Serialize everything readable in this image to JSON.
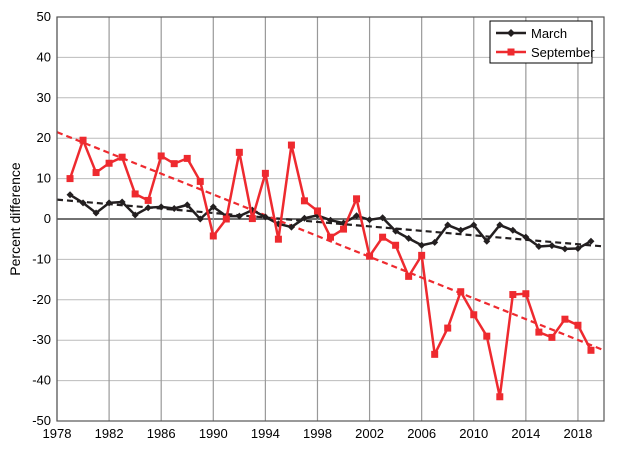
{
  "chart_data": {
    "type": "line",
    "title": "",
    "xlabel": "",
    "ylabel": "Percent difference",
    "xlim": [
      1978,
      2020
    ],
    "ylim": [
      -50,
      50
    ],
    "xticks": [
      1978,
      1982,
      1986,
      1990,
      1994,
      1998,
      2002,
      2006,
      2010,
      2014,
      2018
    ],
    "yticks": [
      -50,
      -40,
      -30,
      -20,
      -10,
      0,
      10,
      20,
      30,
      40,
      50
    ],
    "grid": true,
    "legend_position": "top-right",
    "x": [
      1979,
      1980,
      1981,
      1982,
      1983,
      1984,
      1985,
      1986,
      1987,
      1988,
      1989,
      1990,
      1991,
      1992,
      1993,
      1994,
      1995,
      1996,
      1997,
      1998,
      1999,
      2000,
      2001,
      2002,
      2003,
      2004,
      2005,
      2006,
      2007,
      2008,
      2009,
      2010,
      2011,
      2012,
      2013,
      2014,
      2015,
      2016,
      2017,
      2018,
      2019
    ],
    "series": [
      {
        "name": "March",
        "color": "#231f20",
        "marker": "diamond",
        "values": [
          6,
          4,
          1.5,
          4,
          4.2,
          1,
          2.8,
          3,
          2.6,
          3.5,
          0,
          3,
          0.7,
          0.7,
          2.2,
          0.5,
          -1.2,
          -2,
          0.2,
          0.9,
          -0.3,
          -1,
          0.8,
          -0.2,
          0.3,
          -3,
          -4.8,
          -6.5,
          -5.8,
          -1.5,
          -2.8,
          -1.5,
          -5.5,
          -1.5,
          -2.8,
          -4.5,
          -6.8,
          -6.6,
          -7.4,
          -7.3,
          -5.5
        ],
        "trend": {
          "x": [
            1978,
            2020
          ],
          "y": [
            4.8,
            -6.8
          ]
        }
      },
      {
        "name": "September",
        "color": "#ee2a2f",
        "marker": "square",
        "values": [
          10,
          19.5,
          11.5,
          13.8,
          15.3,
          6.2,
          4.6,
          15.6,
          13.7,
          15,
          9.3,
          -4.2,
          0,
          16.5,
          0.1,
          11.3,
          -5,
          18.3,
          4.5,
          2,
          -4.5,
          -2.5,
          5,
          -9.2,
          -4.5,
          -6.5,
          -14.2,
          -9,
          -33.5,
          -27,
          -18,
          -23.7,
          -29,
          -44,
          -18.7,
          -18.5,
          -28,
          -29.3,
          -24.8,
          -26.3,
          -32.5
        ],
        "trend": {
          "x": [
            1978,
            2020
          ],
          "y": [
            21.5,
            -32.5
          ]
        }
      }
    ]
  }
}
